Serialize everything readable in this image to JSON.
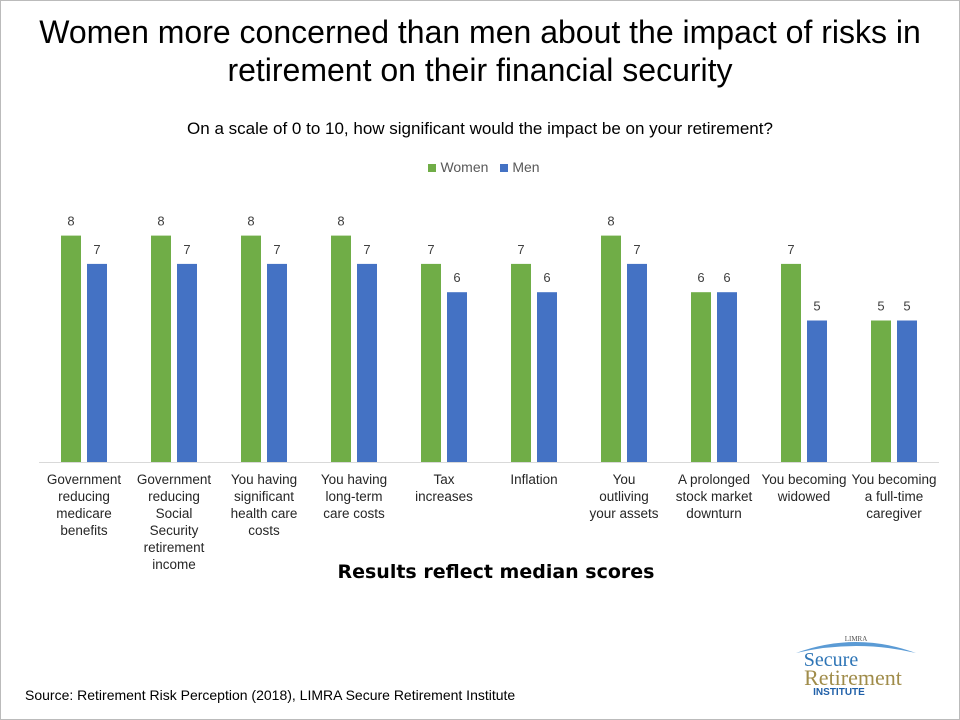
{
  "title": "Women more concerned than men about the impact of risks in retirement on their financial security",
  "subtitle": "On a scale of 0 to 10, how significant would the impact be on your retirement?",
  "note": "Results reflect median scores",
  "source": "Source: Retirement Risk Perception (2018), LIMRA Secure Retirement Institute",
  "logo": {
    "top": "LIMRA",
    "line1": "Secure",
    "line2": "Retirement",
    "line3": "INSTITUTE"
  },
  "colors": {
    "women": "#70ad47",
    "men": "#4472c4"
  },
  "chart_data": {
    "type": "bar",
    "categories": [
      "Government reducing medicare benefits",
      "Government reducing Social Security retirement income",
      "You having significant health care costs",
      "You having long-term care costs",
      "Tax increases",
      "Inflation",
      "You outliving your assets",
      "A prolonged stock market downturn",
      "You becoming widowed",
      "You becoming a full-time caregiver"
    ],
    "series": [
      {
        "name": "Women",
        "values": [
          8,
          8,
          8,
          8,
          7,
          7,
          8,
          6,
          7,
          5
        ]
      },
      {
        "name": "Men",
        "values": [
          7,
          7,
          7,
          7,
          6,
          6,
          7,
          6,
          5,
          5
        ]
      }
    ],
    "ylim": [
      0,
      8
    ],
    "data_labels": true,
    "legend": "top",
    "grid": false
  }
}
